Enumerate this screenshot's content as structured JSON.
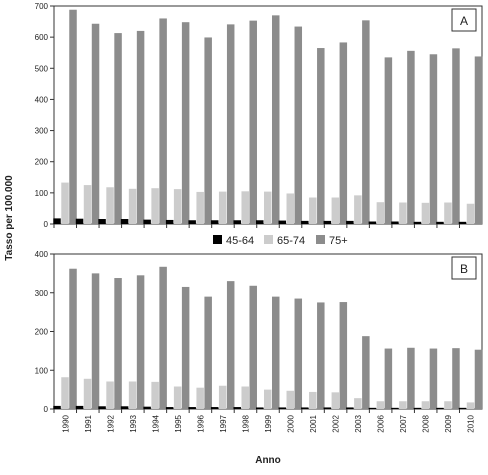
{
  "figure": {
    "ylabel": "Tasso per 100.000",
    "xlabel": "Anno",
    "legend": {
      "items": [
        {
          "label": "45-64",
          "color": "#000000"
        },
        {
          "label": "65-74",
          "color": "#cccccc"
        },
        {
          "label": "75+",
          "color": "#8c8c8c"
        }
      ]
    }
  },
  "chart_data": [
    {
      "type": "bar",
      "panel_label": "A",
      "categories": [
        "1990",
        "1991",
        "1992",
        "1993",
        "1994",
        "1995",
        "1996",
        "1997",
        "1998",
        "1999",
        "2000",
        "2001",
        "2002",
        "2003",
        "2006",
        "2007",
        "2008",
        "2009",
        "2010"
      ],
      "series": [
        {
          "name": "45-64",
          "color": "#000000",
          "values": [
            18,
            17,
            16,
            16,
            14,
            13,
            12,
            12,
            12,
            12,
            11,
            10,
            10,
            10,
            8,
            8,
            7,
            7,
            7
          ]
        },
        {
          "name": "65-74",
          "color": "#cccccc",
          "values": [
            133,
            125,
            118,
            113,
            115,
            112,
            103,
            104,
            105,
            104,
            98,
            85,
            85,
            92,
            70,
            69,
            68,
            69,
            65
          ]
        },
        {
          "name": "75+",
          "color": "#8c8c8c",
          "values": [
            688,
            643,
            613,
            620,
            660,
            648,
            599,
            641,
            653,
            670,
            634,
            565,
            583,
            654,
            535,
            556,
            545,
            564,
            538
          ]
        }
      ],
      "yticks": [
        0,
        100,
        200,
        300,
        400,
        500,
        600,
        700
      ],
      "ylim": [
        0,
        700
      ],
      "legend_position": "below"
    },
    {
      "type": "bar",
      "panel_label": "B",
      "categories": [
        "1990",
        "1991",
        "1992",
        "1993",
        "1994",
        "1995",
        "1996",
        "1997",
        "1998",
        "1999",
        "2000",
        "2001",
        "2002",
        "2003",
        "2006",
        "2007",
        "2008",
        "2009",
        "2010"
      ],
      "series": [
        {
          "name": "45-64",
          "color": "#000000",
          "values": [
            8,
            8,
            7,
            7,
            6,
            5,
            5,
            5,
            5,
            4,
            4,
            4,
            4,
            4,
            3,
            3,
            3,
            3,
            3
          ]
        },
        {
          "name": "65-74",
          "color": "#cccccc",
          "values": [
            82,
            78,
            71,
            71,
            70,
            58,
            55,
            60,
            58,
            50,
            47,
            44,
            43,
            28,
            20,
            20,
            20,
            20,
            17
          ]
        },
        {
          "name": "75+",
          "color": "#8c8c8c",
          "values": [
            362,
            350,
            338,
            345,
            367,
            315,
            290,
            330,
            318,
            290,
            285,
            275,
            276,
            188,
            156,
            158,
            156,
            157,
            153
          ]
        }
      ],
      "yticks": [
        0,
        100,
        200,
        300,
        400
      ],
      "ylim": [
        0,
        400
      ]
    }
  ]
}
